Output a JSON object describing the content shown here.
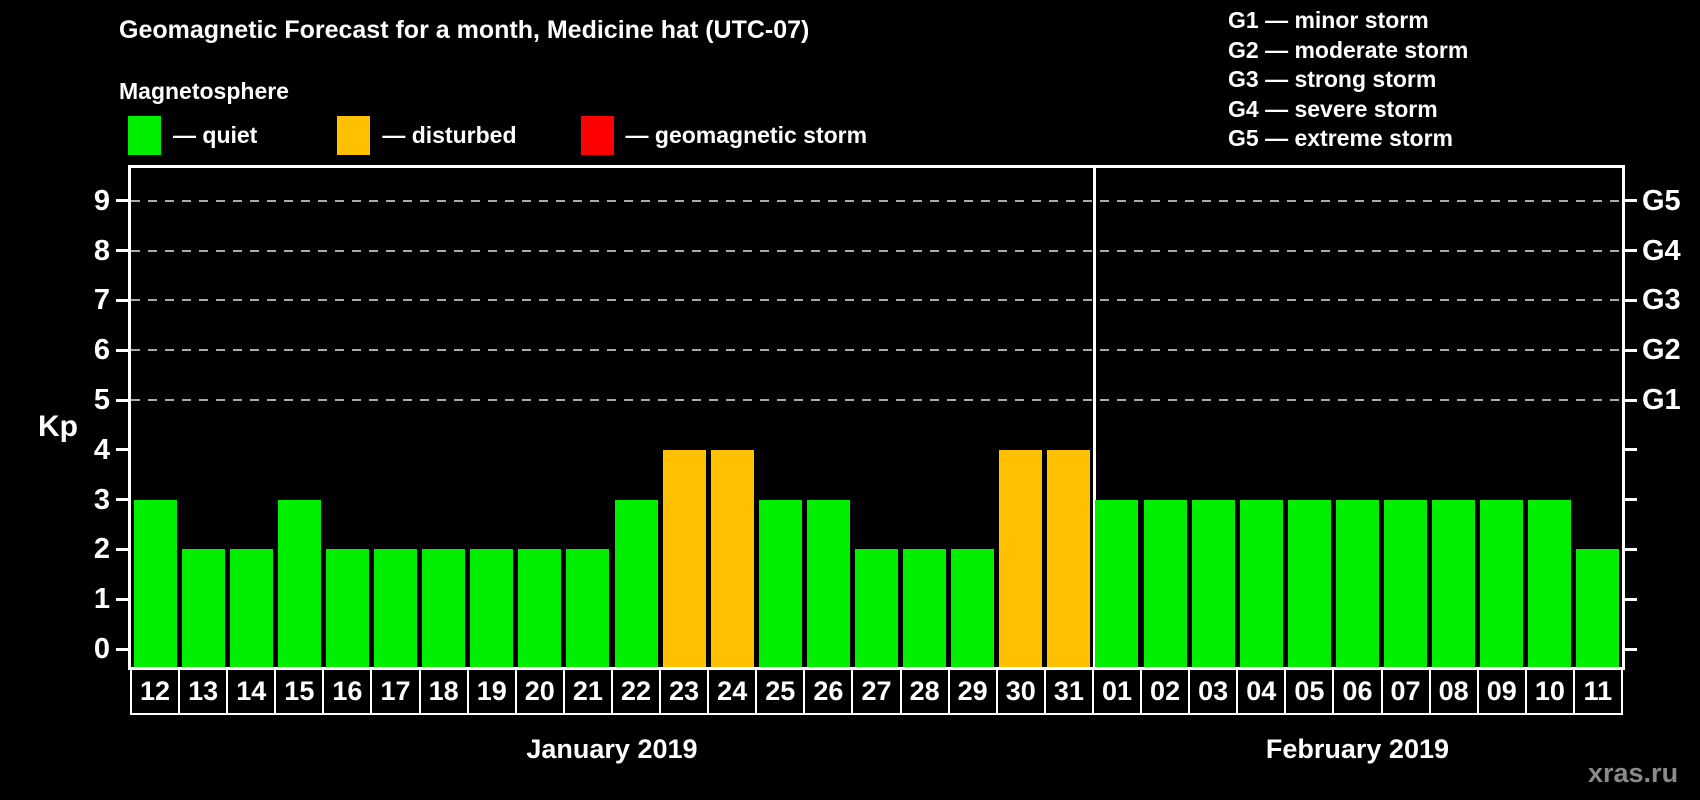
{
  "title": "Geomagnetic Forecast for a month, Medicine hat (UTC-07)",
  "subtitle": "Magnetosphere",
  "watermark": "xras.ru",
  "colors": {
    "quiet": "#00ef00",
    "disturbed": "#ffc000",
    "storm": "#ff0000",
    "background": "#000000",
    "axis": "#ffffff",
    "grid": "#aaaaaa"
  },
  "legend": {
    "items": [
      {
        "key": "quiet",
        "label": "— quiet",
        "color": "#00ef00"
      },
      {
        "key": "disturbed",
        "label": "— disturbed",
        "color": "#ffc000"
      },
      {
        "key": "storm",
        "label": "— geomagnetic storm",
        "color": "#ff0000"
      }
    ]
  },
  "g_scale_legend": [
    "G1 — minor storm",
    "G2 — moderate storm",
    "G3 — strong storm",
    "G4 — severe storm",
    "G5 — extreme storm"
  ],
  "chart_data": {
    "type": "bar",
    "ylabel": "Kp",
    "ylim": [
      -0.36,
      9.7
    ],
    "yticks": [
      0,
      1,
      2,
      3,
      4,
      5,
      6,
      7,
      8,
      9
    ],
    "grid": "dashed horizontal at Kp 5-9",
    "gridlines_at": [
      5,
      6,
      7,
      8,
      9
    ],
    "right_axis_labels": [
      {
        "kp": 5,
        "label": "G1"
      },
      {
        "kp": 6,
        "label": "G2"
      },
      {
        "kp": 7,
        "label": "G3"
      },
      {
        "kp": 8,
        "label": "G4"
      },
      {
        "kp": 9,
        "label": "G5"
      }
    ],
    "months": [
      {
        "label": "January 2019",
        "days": [
          {
            "day": "12",
            "kp": 3,
            "condition": "quiet"
          },
          {
            "day": "13",
            "kp": 2,
            "condition": "quiet"
          },
          {
            "day": "14",
            "kp": 2,
            "condition": "quiet"
          },
          {
            "day": "15",
            "kp": 3,
            "condition": "quiet"
          },
          {
            "day": "16",
            "kp": 2,
            "condition": "quiet"
          },
          {
            "day": "17",
            "kp": 2,
            "condition": "quiet"
          },
          {
            "day": "18",
            "kp": 2,
            "condition": "quiet"
          },
          {
            "day": "19",
            "kp": 2,
            "condition": "quiet"
          },
          {
            "day": "20",
            "kp": 2,
            "condition": "quiet"
          },
          {
            "day": "21",
            "kp": 2,
            "condition": "quiet"
          },
          {
            "day": "22",
            "kp": 3,
            "condition": "quiet"
          },
          {
            "day": "23",
            "kp": 4,
            "condition": "disturbed"
          },
          {
            "day": "24",
            "kp": 4,
            "condition": "disturbed"
          },
          {
            "day": "25",
            "kp": 3,
            "condition": "quiet"
          },
          {
            "day": "26",
            "kp": 3,
            "condition": "quiet"
          },
          {
            "day": "27",
            "kp": 2,
            "condition": "quiet"
          },
          {
            "day": "28",
            "kp": 2,
            "condition": "quiet"
          },
          {
            "day": "29",
            "kp": 2,
            "condition": "quiet"
          },
          {
            "day": "30",
            "kp": 4,
            "condition": "disturbed"
          },
          {
            "day": "31",
            "kp": 4,
            "condition": "disturbed"
          }
        ]
      },
      {
        "label": "February 2019",
        "days": [
          {
            "day": "01",
            "kp": 3,
            "condition": "quiet"
          },
          {
            "day": "02",
            "kp": 3,
            "condition": "quiet"
          },
          {
            "day": "03",
            "kp": 3,
            "condition": "quiet"
          },
          {
            "day": "04",
            "kp": 3,
            "condition": "quiet"
          },
          {
            "day": "05",
            "kp": 3,
            "condition": "quiet"
          },
          {
            "day": "06",
            "kp": 3,
            "condition": "quiet"
          },
          {
            "day": "07",
            "kp": 3,
            "condition": "quiet"
          },
          {
            "day": "08",
            "kp": 3,
            "condition": "quiet"
          },
          {
            "day": "09",
            "kp": 3,
            "condition": "quiet"
          },
          {
            "day": "10",
            "kp": 3,
            "condition": "quiet"
          },
          {
            "day": "11",
            "kp": 2,
            "condition": "quiet"
          }
        ]
      }
    ]
  }
}
